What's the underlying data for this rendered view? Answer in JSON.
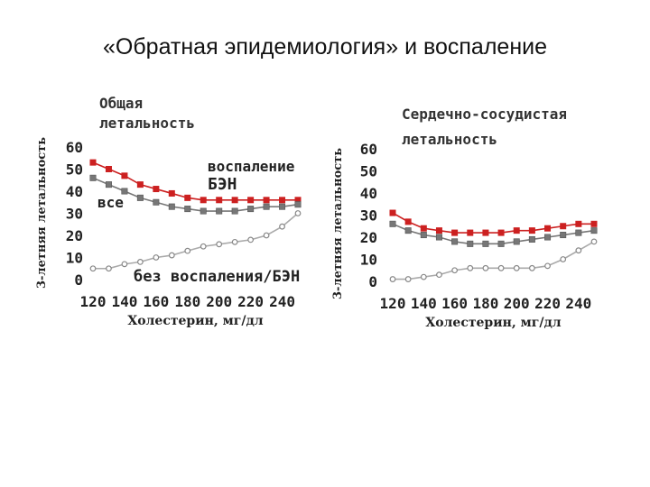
{
  "slide": {
    "title": "«Обратная эпидемиология» и воспаление"
  },
  "colors": {
    "red": "#cc2020",
    "gray": "#777777",
    "light": "#aaaaaa",
    "text": "#222222"
  },
  "chart_data": [
    {
      "type": "line",
      "title": "Общая\nлетальность",
      "title_lines": [
        "Общая",
        "летальность"
      ],
      "xlabel": "Холестерин, мг/дл",
      "ylabel": "3-летняя летальность",
      "x": [
        120,
        130,
        140,
        150,
        160,
        170,
        180,
        190,
        200,
        210,
        220,
        230,
        240,
        250
      ],
      "xticks": [
        "120",
        "140",
        "160",
        "180",
        "200",
        "220",
        "240"
      ],
      "xtick_values": [
        120,
        140,
        160,
        180,
        200,
        220,
        240
      ],
      "yticks": [
        "60",
        "50",
        "40",
        "30",
        "20",
        "10",
        "0"
      ],
      "ytick_values": [
        60,
        50,
        40,
        30,
        20,
        10,
        0
      ],
      "ylim": [
        0,
        60
      ],
      "xlim": [
        120,
        250
      ],
      "series": [
        {
          "name": "воспаление БЭН",
          "label_lines": [
            "воспаление",
            "БЭН"
          ],
          "marker": "red-square",
          "values": [
            53,
            50,
            47,
            43,
            41,
            39,
            37,
            36,
            36,
            36,
            36,
            36,
            36,
            36
          ]
        },
        {
          "name": "все",
          "label_lines": [
            "все"
          ],
          "marker": "gray-square",
          "values": [
            46,
            43,
            40,
            37,
            35,
            33,
            32,
            31,
            31,
            31,
            32,
            33,
            33,
            34
          ]
        },
        {
          "name": "без воспаления/БЭН",
          "label_lines": [
            "без воспаления/БЭН"
          ],
          "marker": "open-circle",
          "values": [
            5,
            5,
            7,
            8,
            10,
            11,
            13,
            15,
            16,
            17,
            18,
            20,
            24,
            30
          ]
        }
      ]
    },
    {
      "type": "line",
      "title": "Сердечно-сосудистая\nлетальность",
      "title_lines": [
        "Сердечно-сосудистая",
        "летальность"
      ],
      "xlabel": "Холестерин, мг/дл",
      "ylabel": "3-летняя летальность",
      "x": [
        120,
        130,
        140,
        150,
        160,
        170,
        180,
        190,
        200,
        210,
        220,
        230,
        240,
        250
      ],
      "xticks": [
        "120",
        "140",
        "160",
        "180",
        "200",
        "220",
        "240"
      ],
      "xtick_values": [
        120,
        140,
        160,
        180,
        200,
        220,
        240
      ],
      "yticks": [
        "60",
        "50",
        "40",
        "30",
        "20",
        "10",
        "0"
      ],
      "ytick_values": [
        60,
        50,
        40,
        30,
        20,
        10,
        0
      ],
      "ylim": [
        0,
        60
      ],
      "xlim": [
        120,
        250
      ],
      "series": [
        {
          "name": "воспаление БЭН",
          "label_lines": [],
          "marker": "red-square",
          "values": [
            31,
            27,
            24,
            23,
            22,
            22,
            22,
            22,
            23,
            23,
            24,
            25,
            26,
            26
          ]
        },
        {
          "name": "все",
          "label_lines": [],
          "marker": "gray-square",
          "values": [
            26,
            23,
            21,
            20,
            18,
            17,
            17,
            17,
            18,
            19,
            20,
            21,
            22,
            23
          ]
        },
        {
          "name": "без воспаления/БЭН",
          "label_lines": [],
          "marker": "open-circle",
          "values": [
            1,
            1,
            2,
            3,
            5,
            6,
            6,
            6,
            6,
            6,
            7,
            10,
            14,
            18
          ]
        }
      ]
    }
  ]
}
